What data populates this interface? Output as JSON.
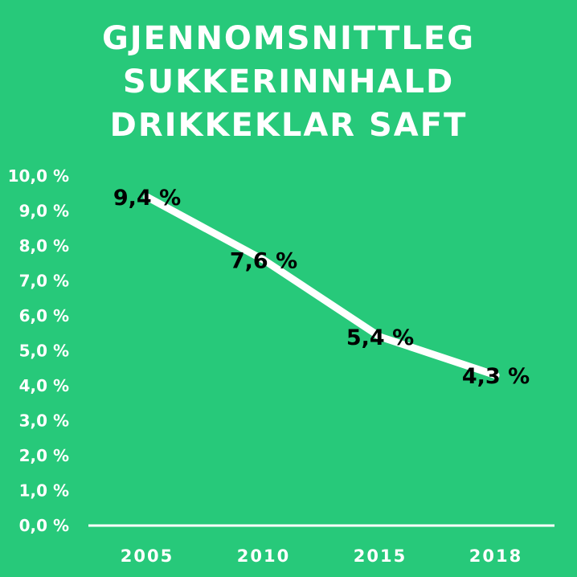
{
  "chart_data": {
    "type": "line",
    "title_lines": [
      "GJENNOMSNITTLEG",
      "SUKKERINNHALD",
      "DRIKKEKLAR SAFT"
    ],
    "categories": [
      "2005",
      "2010",
      "2015",
      "2018"
    ],
    "values": [
      9.4,
      7.6,
      5.4,
      4.3
    ],
    "data_labels": [
      "9,4 %",
      "7,6 %",
      "5,4 %",
      "4,3 %"
    ],
    "y_ticks": [
      "0,0 %",
      "1,0 %",
      "2,0 %",
      "3,0 %",
      "4,0 %",
      "5,0 %",
      "6,0 %",
      "7,0 %",
      "8,0 %",
      "9,0 %",
      "10,0 %"
    ],
    "ylim": [
      0,
      10
    ],
    "grid": false,
    "colors": {
      "background": "#27c97a",
      "line": "#ffffff",
      "text": "#ffffff",
      "label": "#000000"
    }
  }
}
